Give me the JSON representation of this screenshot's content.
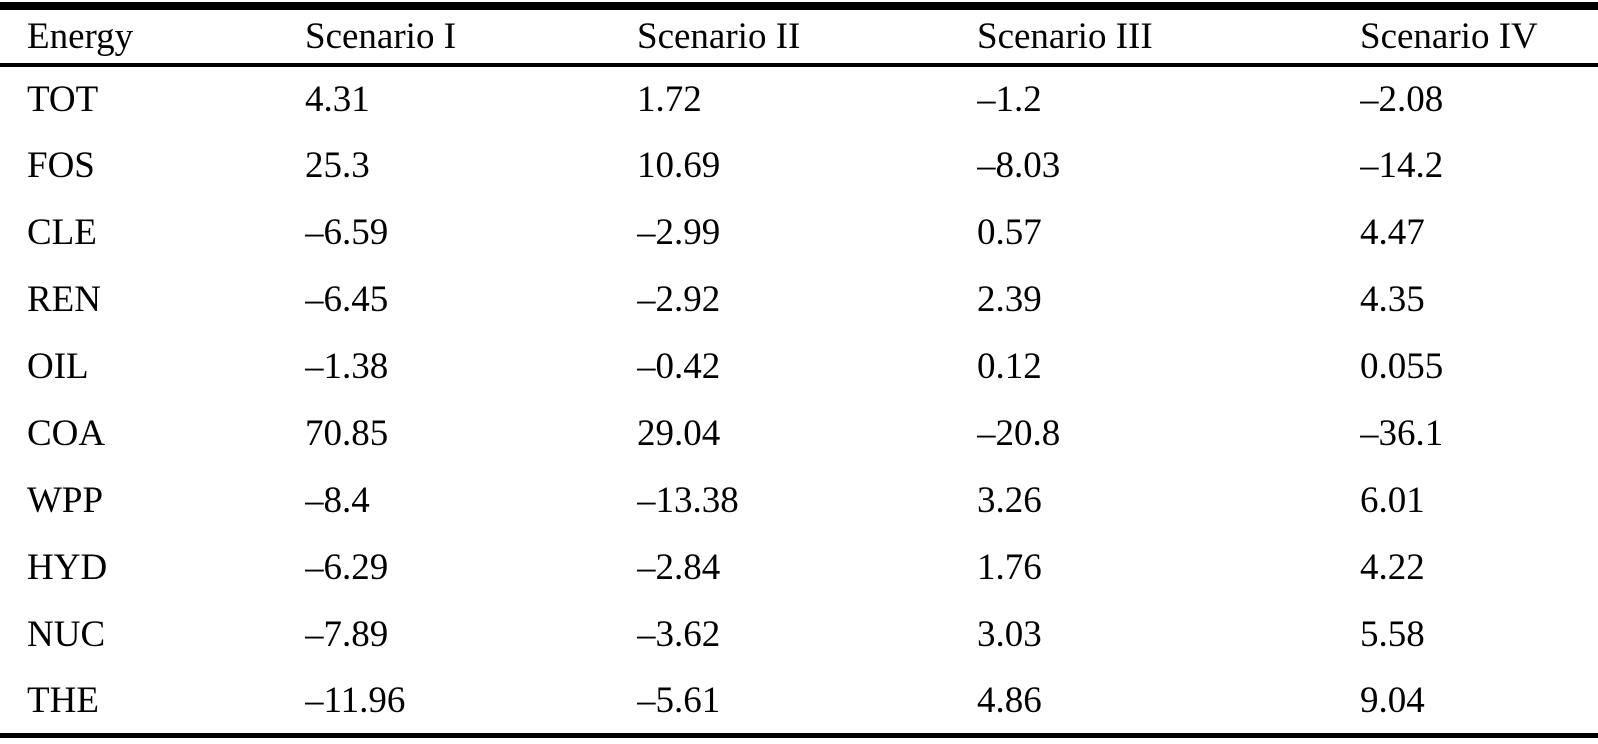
{
  "table": {
    "columns": [
      "Energy",
      "Scenario I",
      "Scenario II",
      "Scenario III",
      "Scenario IV"
    ],
    "rows": [
      {
        "cells": [
          "TOT",
          "4.31",
          "1.72",
          "–1.2",
          "–2.08"
        ]
      },
      {
        "cells": [
          "FOS",
          "25.3",
          "10.69",
          "–8.03",
          "–14.2"
        ]
      },
      {
        "cells": [
          "CLE",
          "–6.59",
          "–2.99",
          "0.57",
          "4.47"
        ]
      },
      {
        "cells": [
          "REN",
          "–6.45",
          "–2.92",
          "2.39",
          "4.35"
        ]
      },
      {
        "cells": [
          "OIL",
          "–1.38",
          "–0.42",
          "0.12",
          "0.055"
        ]
      },
      {
        "cells": [
          "COA",
          "70.85",
          "29.04",
          "–20.8",
          "–36.1"
        ]
      },
      {
        "cells": [
          "WPP",
          "–8.4",
          "–13.38",
          "3.26",
          "6.01"
        ]
      },
      {
        "cells": [
          "HYD",
          "–6.29",
          "–2.84",
          "1.76",
          "4.22"
        ]
      },
      {
        "cells": [
          "NUC",
          "–7.89",
          "–3.62",
          "3.03",
          "5.58"
        ]
      },
      {
        "cells": [
          "THE",
          "–11.96",
          "–5.61",
          "4.86",
          "9.04"
        ]
      }
    ],
    "colors": {
      "text": "#000000",
      "background": "#ffffff",
      "rule": "#000000"
    }
  },
  "chart_data": {
    "type": "table",
    "categories": [
      "TOT",
      "FOS",
      "CLE",
      "REN",
      "OIL",
      "COA",
      "WPP",
      "HYD",
      "NUC",
      "THE"
    ],
    "series": [
      {
        "name": "Scenario I",
        "values": [
          4.31,
          25.3,
          -6.59,
          -6.45,
          -1.38,
          70.85,
          -8.4,
          -6.29,
          -7.89,
          -11.96
        ]
      },
      {
        "name": "Scenario II",
        "values": [
          1.72,
          10.69,
          -2.99,
          -2.92,
          -0.42,
          29.04,
          -13.38,
          -2.84,
          -3.62,
          -5.61
        ]
      },
      {
        "name": "Scenario III",
        "values": [
          -1.2,
          -8.03,
          0.57,
          2.39,
          0.12,
          -20.8,
          3.26,
          1.76,
          3.03,
          4.86
        ]
      },
      {
        "name": "Scenario IV",
        "values": [
          -2.08,
          -14.2,
          4.47,
          4.35,
          0.055,
          -36.1,
          6.01,
          4.22,
          5.58,
          9.04
        ]
      }
    ],
    "title": "",
    "xlabel": "Energy",
    "ylabel": ""
  }
}
